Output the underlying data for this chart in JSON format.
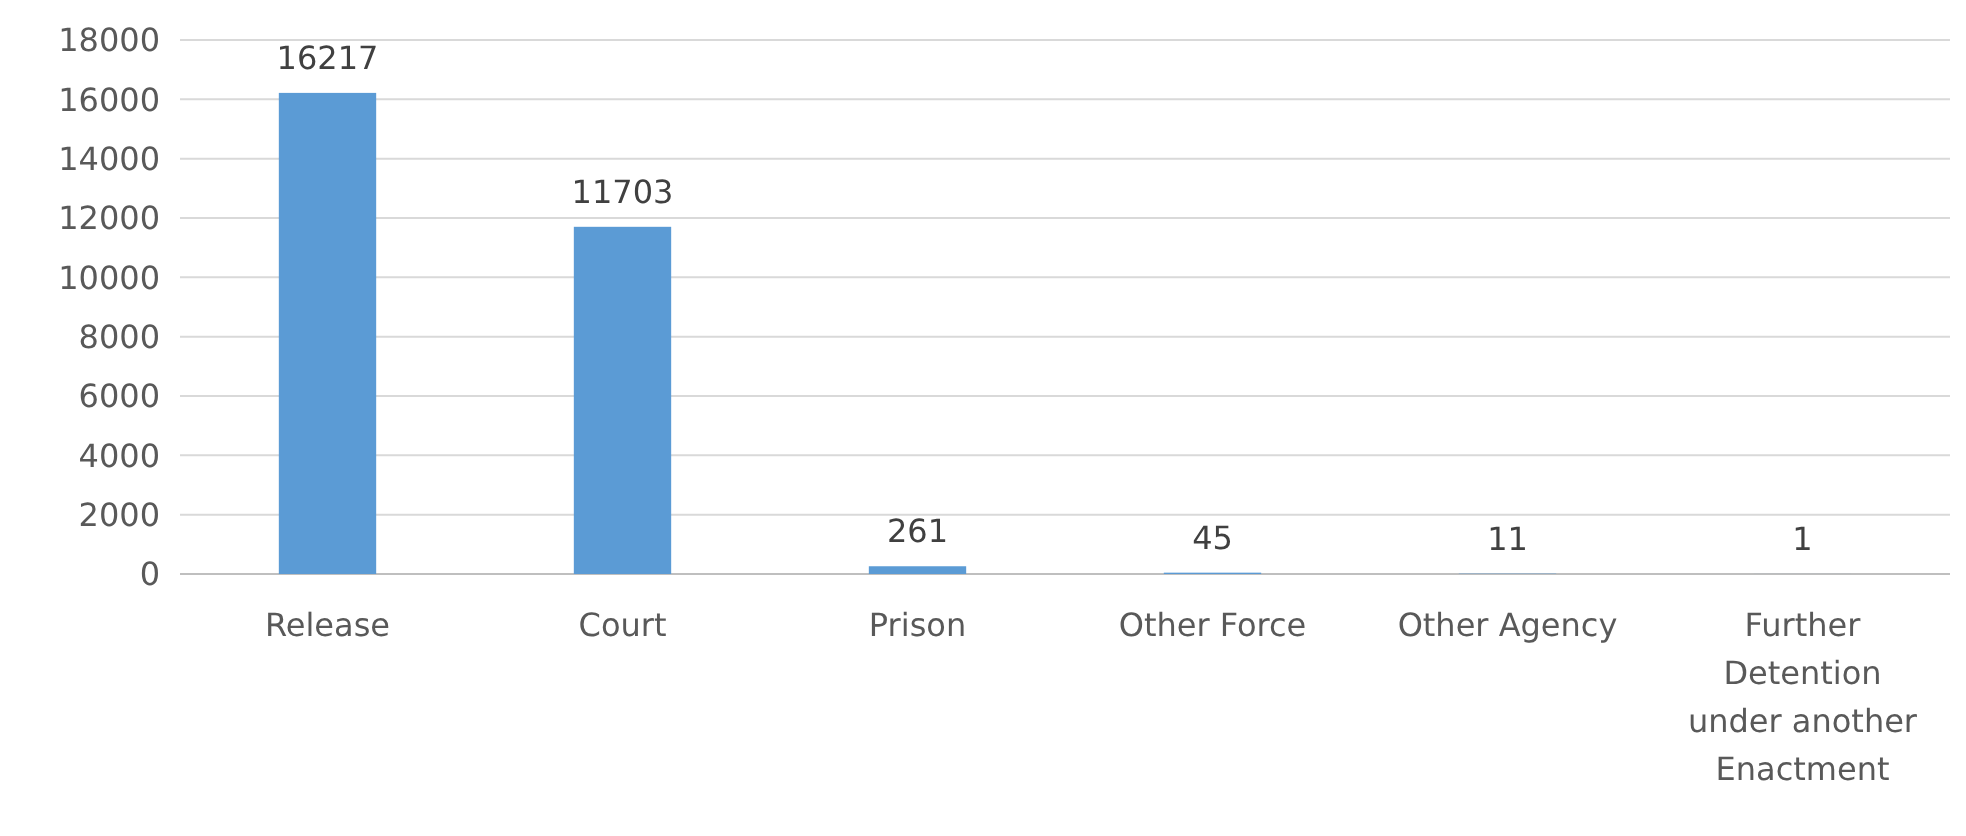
{
  "chart_data": {
    "type": "bar",
    "categories": [
      "Release",
      "Court",
      "Prison",
      "Other Force",
      "Other Agency",
      "Further Detention under another Enactment"
    ],
    "values": [
      16217,
      11703,
      261,
      45,
      11,
      1
    ],
    "color": "#5b9bd5",
    "ylim": [
      0,
      18000
    ],
    "yticks": [
      0,
      2000,
      4000,
      6000,
      8000,
      10000,
      12000,
      14000,
      16000,
      18000
    ],
    "grid": "y",
    "data_labels": true
  }
}
